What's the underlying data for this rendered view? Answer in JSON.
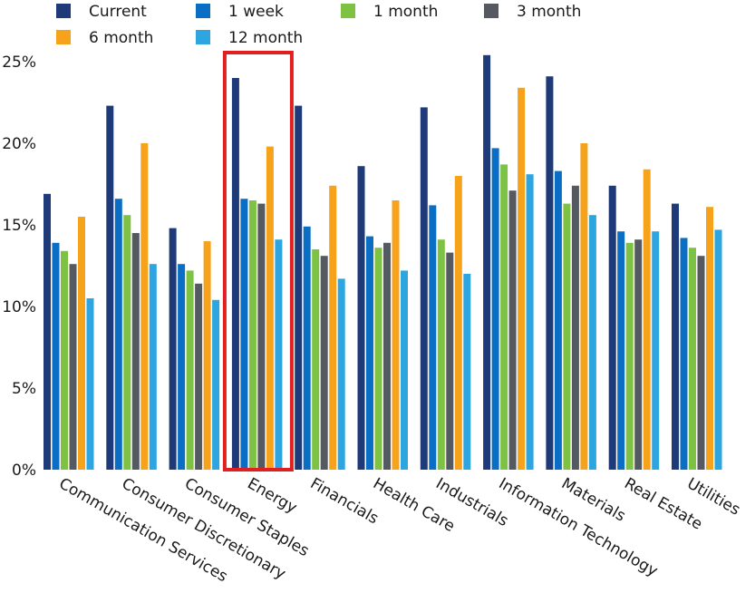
{
  "chart_data": {
    "type": "bar",
    "title": "",
    "xlabel": "",
    "ylabel": "",
    "ylim": [
      0,
      25
    ],
    "yticks": [
      0,
      5,
      10,
      15,
      20,
      25
    ],
    "ytick_labels": [
      "0%",
      "5%",
      "10%",
      "15%",
      "20%",
      "25%"
    ],
    "legend_position": "top",
    "categories": [
      "Communication Services",
      "Consumer Discretionary",
      "Consumer Staples",
      "Energy",
      "Financials",
      "Health Care",
      "Industrials",
      "Information Technology",
      "Materials",
      "Real Estate",
      "Utilities"
    ],
    "series": [
      {
        "name": "Current",
        "color": "#1f3a78",
        "values": [
          16.9,
          22.3,
          14.8,
          24.0,
          22.3,
          18.6,
          22.2,
          25.4,
          24.1,
          17.4,
          16.3
        ]
      },
      {
        "name": "1 week",
        "color": "#0a6fc4",
        "values": [
          13.9,
          16.6,
          12.6,
          16.6,
          14.9,
          14.3,
          16.2,
          19.7,
          18.3,
          14.6,
          14.2
        ]
      },
      {
        "name": "1 month",
        "color": "#7dc242",
        "values": [
          13.4,
          15.6,
          12.2,
          16.5,
          13.5,
          13.6,
          14.1,
          18.7,
          16.3,
          13.9,
          13.6
        ]
      },
      {
        "name": "3 month",
        "color": "#555a61",
        "values": [
          12.6,
          14.5,
          11.4,
          16.3,
          13.1,
          13.9,
          13.3,
          17.1,
          17.4,
          14.1,
          13.1
        ]
      },
      {
        "name": "6 month",
        "color": "#f7a21b",
        "values": [
          15.5,
          20.0,
          14.0,
          19.8,
          17.4,
          16.5,
          18.0,
          23.4,
          20.0,
          18.4,
          16.1
        ]
      },
      {
        "name": "12 month",
        "color": "#2da5e0",
        "values": [
          10.5,
          12.6,
          10.4,
          14.1,
          11.7,
          12.2,
          12.0,
          18.1,
          15.6,
          14.6,
          14.7
        ]
      }
    ],
    "highlight": {
      "category": "Energy",
      "color": "#e02020"
    }
  }
}
